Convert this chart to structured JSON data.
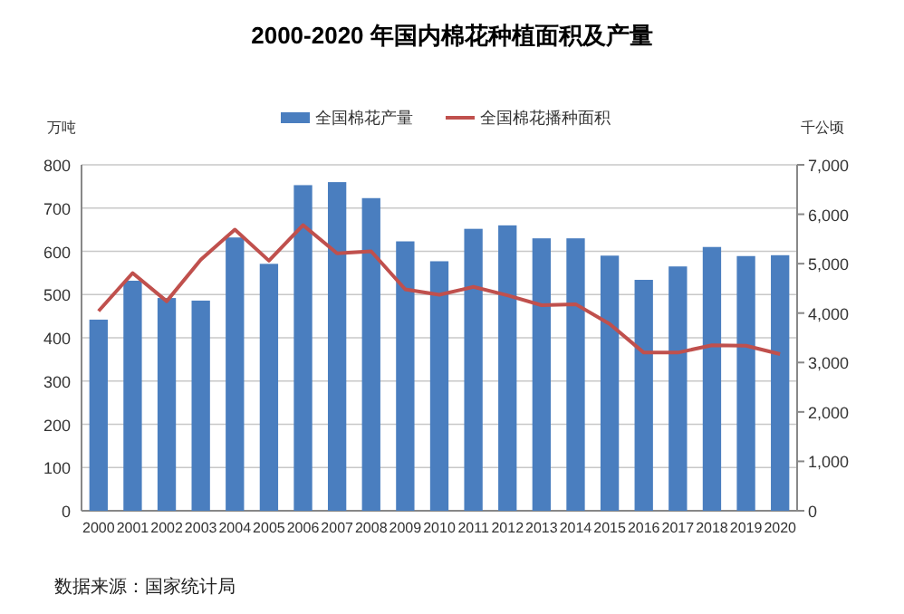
{
  "chart_data": {
    "type": "bar",
    "title": "2000-2020 年国内棉花种植面积及产量",
    "ylabel": "万吨",
    "y2label": "千公顷",
    "categories": [
      "2000",
      "2001",
      "2002",
      "2003",
      "2004",
      "2005",
      "2006",
      "2007",
      "2008",
      "2009",
      "2010",
      "2011",
      "2012",
      "2013",
      "2014",
      "2015",
      "2016",
      "2017",
      "2018",
      "2019",
      "2020"
    ],
    "series": [
      {
        "name": "全国棉花产量",
        "color": "#4a7ebf",
        "values": [
          442,
          532,
          492,
          486,
          632,
          571,
          753,
          760,
          723,
          623,
          577,
          652,
          660,
          630,
          630,
          590,
          534,
          565,
          610,
          589,
          591
        ]
      },
      {
        "name": "全国棉花播种面积",
        "type": "line",
        "axis": "y2",
        "color": "#c0504d",
        "values": [
          4040,
          4810,
          4240,
          5080,
          5690,
          5060,
          5780,
          5210,
          5250,
          4480,
          4370,
          4530,
          4360,
          4160,
          4180,
          3780,
          3200,
          3200,
          3350,
          3340,
          3170
        ]
      }
    ],
    "ylim": [
      0,
      800
    ],
    "yticks": [
      0,
      100,
      200,
      300,
      400,
      500,
      600,
      700,
      800
    ],
    "y2lim": [
      0,
      7000
    ],
    "y2ticks": [
      0,
      {
        "value": 1000,
        "label": "1,000"
      },
      {
        "value": 2000,
        "label": "2,000"
      },
      {
        "value": 3000,
        "label": "3,000"
      },
      {
        "value": 4000,
        "label": "4,000"
      },
      {
        "value": 5000,
        "label": "5,000"
      },
      {
        "value": 6000,
        "label": "6,000"
      },
      {
        "value": 7000,
        "label": "7,000"
      }
    ],
    "grid": "y",
    "legend": "top",
    "marker": "none",
    "annotations": [
      "数据来源：国家统计局"
    ]
  }
}
